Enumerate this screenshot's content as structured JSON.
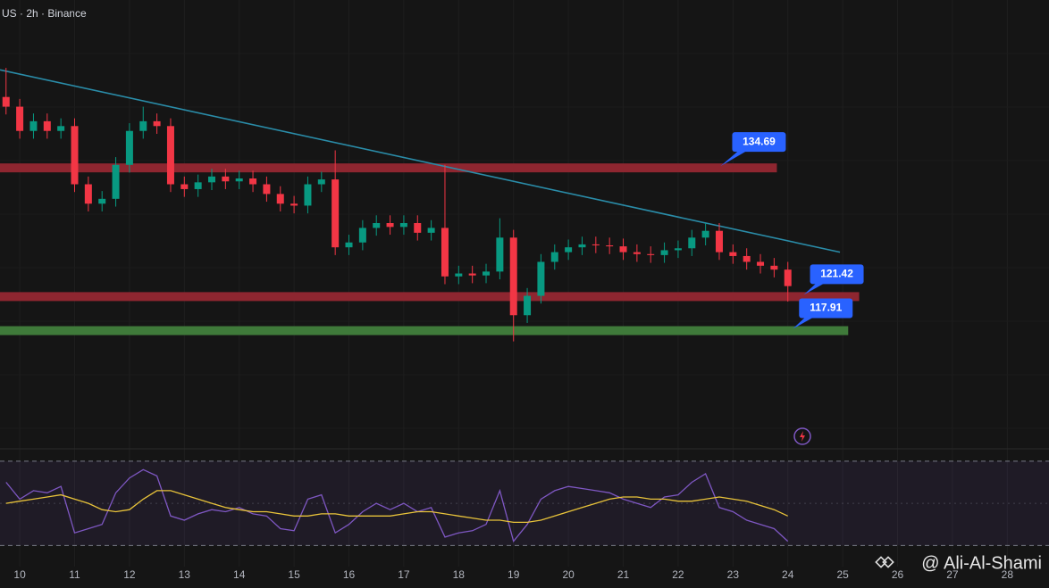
{
  "chart_data": {
    "type": "candlestick",
    "header": "US · 2h · Binance",
    "watermark": "@ Ali-Al-Shami",
    "x": [
      9.75,
      10,
      10.25,
      10.5,
      10.75,
      11,
      11.25,
      11.5,
      11.75,
      12,
      12.25,
      12.5,
      12.75,
      13,
      13.25,
      13.5,
      13.75,
      14,
      14.25,
      14.5,
      14.75,
      15,
      15.25,
      15.5,
      15.75,
      16,
      16.25,
      16.5,
      16.75,
      17,
      17.25,
      17.5,
      17.75,
      18,
      18.25,
      18.5,
      18.75,
      19,
      19.25,
      19.5,
      19.75,
      20,
      20.25,
      20.5,
      20.75,
      21,
      21.25,
      21.5,
      21.75,
      22,
      22.25,
      22.5,
      22.75,
      23,
      23.25,
      23.5,
      23.75,
      24
    ],
    "open": [
      142,
      141,
      138.5,
      139.5,
      138.5,
      139,
      133,
      131,
      131.5,
      135,
      138.5,
      139.5,
      139,
      133,
      132.5,
      133.2,
      133.8,
      133.3,
      133.6,
      133,
      132,
      131,
      130.8,
      133,
      133.5,
      126.5,
      127,
      128.5,
      129,
      128.6,
      129,
      128,
      128.5,
      123.5,
      123.8,
      123.6,
      124,
      127.5,
      119.5,
      121.5,
      125,
      126,
      126.5,
      126.8,
      126.7,
      126.6,
      126,
      125.8,
      125.7,
      126.2,
      126.4,
      127.5,
      128.2,
      126,
      125.6,
      125,
      124.6,
      124.2
    ],
    "high": [
      145,
      141.8,
      140.3,
      140.3,
      139.8,
      139.8,
      133.8,
      132.3,
      135.8,
      139.3,
      141,
      140.3,
      139.8,
      133.8,
      134,
      134.6,
      134.6,
      134.4,
      134.4,
      133.8,
      132.8,
      131.8,
      133.8,
      134.3,
      136.5,
      127.8,
      129.3,
      129.8,
      129.8,
      129.8,
      129.8,
      129.3,
      135,
      124.6,
      124.6,
      124.8,
      129.5,
      128.3,
      122.3,
      125.8,
      126.8,
      127.3,
      127.6,
      127.6,
      127.5,
      127.4,
      126.8,
      126.6,
      127,
      127.2,
      128.3,
      129,
      129,
      126.8,
      126.4,
      125.8,
      125.4,
      125
    ],
    "low": [
      140.2,
      137.7,
      137.7,
      137.7,
      137.7,
      132.2,
      130.2,
      130.2,
      130.7,
      134.2,
      137.7,
      138.2,
      132.2,
      131.7,
      131.7,
      132.4,
      132.5,
      132.5,
      132.2,
      131.2,
      130.2,
      130,
      130,
      132.2,
      125.7,
      125.7,
      126.2,
      127.7,
      127.8,
      127.8,
      127.2,
      127.2,
      122.7,
      122.7,
      122.8,
      122.8,
      123.2,
      116.8,
      118.7,
      120.7,
      124.2,
      125.2,
      125.7,
      125.9,
      125.8,
      125.2,
      125,
      124.9,
      124.9,
      125.4,
      125.6,
      126.7,
      125.2,
      124.8,
      124.2,
      123.8,
      123.4,
      120.9
    ],
    "close": [
      141,
      138.5,
      139.5,
      138.5,
      139,
      133,
      131,
      131.5,
      135,
      138.5,
      139.5,
      139,
      133,
      132.5,
      133.2,
      133.8,
      133.3,
      133.6,
      133,
      132,
      131,
      130.8,
      133,
      133.5,
      126.5,
      127,
      128.5,
      129,
      128.6,
      129,
      128,
      128.5,
      123.5,
      123.8,
      123.6,
      124,
      127.5,
      119.5,
      121.5,
      125,
      126,
      126.5,
      126.8,
      126.7,
      126.6,
      126,
      125.8,
      125.7,
      126.2,
      126.4,
      127.5,
      128.2,
      126,
      125.6,
      125,
      124.6,
      124.2,
      122.5
    ],
    "up_color": "#089981",
    "down_color": "#f23645",
    "xlim": [
      9.64,
      28.76
    ],
    "xticks": [
      10,
      11,
      12,
      13,
      14,
      15,
      16,
      17,
      18,
      19,
      20,
      21,
      22,
      23,
      24,
      25,
      26,
      27,
      28
    ],
    "ylim": [
      106,
      152
    ],
    "trendline": {
      "x": [
        9.64,
        24.95
      ],
      "y": [
        144.8,
        126.0
      ],
      "color": "#2a8ca8"
    },
    "levels": [
      {
        "value": 134.69,
        "color": "#8e2630",
        "start": 9.64,
        "end": 23.8
      },
      {
        "value": 121.42,
        "color": "#8e2630",
        "start": 9.64,
        "end": 25.3
      },
      {
        "value": 117.91,
        "color": "#3f7a3a",
        "start": 9.64,
        "end": 25.1
      }
    ],
    "rsi": {
      "ylim": [
        20,
        75
      ],
      "bands": [
        70,
        30
      ],
      "color": "#7e57c2",
      "ma_color": "#e8c33a",
      "values": [
        60,
        52,
        56,
        55,
        58,
        36,
        38,
        40,
        55,
        62,
        66,
        63,
        44,
        42,
        45,
        47,
        46,
        48,
        45,
        44,
        38,
        37,
        52,
        54,
        36,
        40,
        46,
        50,
        47,
        50,
        46,
        48,
        34,
        36,
        37,
        40,
        56,
        32,
        40,
        52,
        56,
        58,
        57,
        56,
        55,
        52,
        50,
        48,
        53,
        54,
        60,
        64,
        48,
        46,
        42,
        40,
        38,
        32
      ],
      "ma": [
        50,
        51,
        52,
        53,
        54,
        52,
        50,
        47,
        46,
        47,
        52,
        56,
        56,
        54,
        52,
        50,
        48,
        47,
        46,
        46,
        45,
        44,
        44,
        45,
        45,
        44,
        44,
        44,
        44,
        45,
        46,
        46,
        45,
        44,
        43,
        42,
        42,
        41,
        41,
        42,
        44,
        46,
        48,
        50,
        52,
        53,
        53,
        52,
        52,
        51,
        51,
        52,
        53,
        52,
        51,
        49,
        47,
        44
      ]
    }
  }
}
